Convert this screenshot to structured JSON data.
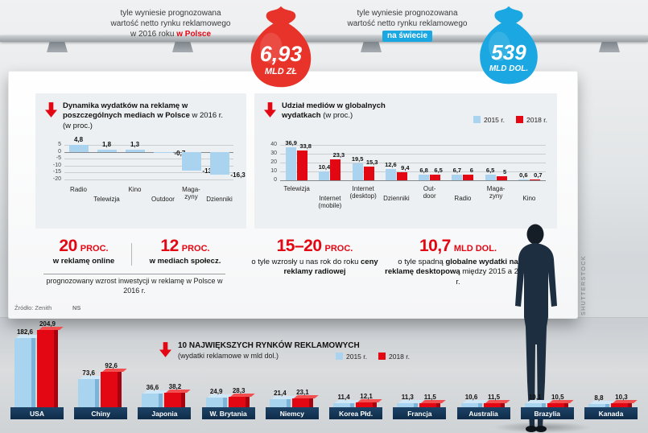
{
  "top": {
    "left_label": {
      "lines": [
        "tyle wyniesie prognozowana",
        "wartość netto rynku reklamowego",
        "w 2016 roku"
      ],
      "highlight": "w Polsce"
    },
    "left_bag": {
      "value": "6,93",
      "unit": "MLD ZŁ"
    },
    "right_label": {
      "lines": [
        "tyle wyniesie prognozowana",
        "wartość netto rynku reklamowego"
      ],
      "highlight": "na świecie"
    },
    "right_bag": {
      "value": "539",
      "unit": "MLD DOL."
    }
  },
  "legend": {
    "l2015": "2015 r.",
    "l2018": "2018 r."
  },
  "board": {
    "panel_pl": {
      "title_bold": "Dynamika wydatków na reklamę w poszczególnych mediach w Polsce",
      "title_rest": "w 2016 r. (w proc.)"
    },
    "panel_global": {
      "title_bold": "Udział mediów w globalnych wydatkach",
      "title_rest": "(w proc.)"
    },
    "stats": {
      "s1": {
        "value": "20",
        "unit": "PROC.",
        "bold": "w reklamę online"
      },
      "s2": {
        "value": "12",
        "unit": "PROC.",
        "bold": "w mediach społecz."
      },
      "s12_caption": "prognozowany wzrost inwestycji w reklamę w Polsce w 2016 r.",
      "s3": {
        "value": "15–20",
        "unit": "PROC.",
        "pre": "o tyle wzrosły u nas rok do roku",
        "bold": "ceny reklamy radiowej"
      },
      "s4": {
        "value": "10,7",
        "unit": "MLD DOL.",
        "pre": "o tyle spadną",
        "bold": "globalne wydatki na reklamę desktopową",
        "post": "między 2015 a 2018 r."
      }
    },
    "source": "Źródło: Zenith",
    "agency": "NS"
  },
  "watermark": "SHUTTERSTOCK",
  "bottom": {
    "title_bold": "10 NAJWIĘKSZYCH RYNKÓW REKLAMOWYCH",
    "title_rest": "(wydatki reklamowe w mld dol.)"
  },
  "colors": {
    "accent_red": "#e30613",
    "light_blue": "#a9d3ee",
    "navy_plate": "#14365a",
    "bag_red": "#e8332a",
    "bag_blue": "#1ba7e1"
  },
  "chart_data": [
    {
      "id": "pl_dynamics",
      "type": "bar",
      "title": "Dynamika wydatków na reklamę w poszczególnych mediach w Polsce w 2016 r. (w proc.)",
      "categories": [
        "Radio",
        "Telewizja",
        "Kino",
        "Outdoor",
        "Maga-\nzyny",
        "Dzienniki"
      ],
      "values": [
        4.8,
        1.8,
        1.3,
        -0.7,
        -13.8,
        -16.3
      ],
      "value_labels": [
        "4,8",
        "1,8",
        "1,3",
        "-0,7",
        "-13,8",
        "-16,3"
      ],
      "ylim": [
        -20,
        5
      ],
      "yticks": [
        5,
        0,
        -5,
        -10,
        -15,
        -20
      ],
      "bar_color": "#a9d3ee",
      "grid": true,
      "legend_position": "none"
    },
    {
      "id": "global_share",
      "type": "bar",
      "title": "Udział mediów w globalnych wydatkach (w proc.)",
      "categories": [
        "Telewizja",
        "Internet\n(mobile)",
        "Internet\n(desktop)",
        "Dzienniki",
        "Out-\ndoor",
        "Radio",
        "Maga-\nzyny",
        "Kino"
      ],
      "series": [
        {
          "name": "2015 r.",
          "color": "#a9d3ee",
          "values": [
            36.9,
            10.4,
            19.5,
            12.6,
            6.8,
            6.7,
            6.5,
            0.6
          ],
          "labels": [
            "36,9",
            "10,4",
            "19,5",
            "12,6",
            "6,8",
            "6,7",
            "6,5",
            "0,6"
          ]
        },
        {
          "name": "2018 r.",
          "color": "#e30613",
          "values": [
            33.8,
            23.3,
            15.3,
            9.4,
            6.5,
            6.0,
            5.0,
            0.7
          ],
          "labels": [
            "33,8",
            "23,3",
            "15,3",
            "9,4",
            "6,5",
            "6",
            "5",
            "0,7"
          ]
        }
      ],
      "ylim": [
        0,
        40
      ],
      "yticks": [
        40,
        30,
        20,
        10,
        0
      ],
      "grid": true,
      "legend_position": "top-right"
    },
    {
      "id": "top_markets",
      "type": "bar",
      "title": "10 największych rynków reklamowych (wydatki reklamowe w mld dol.)",
      "categories": [
        "USA",
        "Chiny",
        "Japonia",
        "W. Brytania",
        "Niemcy",
        "Korea Płd.",
        "Francja",
        "Australia",
        "Brazylia",
        "Kanada"
      ],
      "series": [
        {
          "name": "2015 r.",
          "color": "#a9d4ef",
          "values": [
            182.6,
            73.6,
            36.6,
            24.9,
            21.4,
            11.4,
            11.3,
            10.6,
            10.1,
            8.8
          ],
          "labels": [
            "182,6",
            "73,6",
            "36,6",
            "24,9",
            "21,4",
            "11,4",
            "11,3",
            "10,6",
            "10,1",
            "8,8"
          ]
        },
        {
          "name": "2018 r.",
          "color": "#e30613",
          "values": [
            204.9,
            92.6,
            38.2,
            28.3,
            23.1,
            12.1,
            11.5,
            11.5,
            10.5,
            10.3
          ],
          "labels": [
            "204,9",
            "92,6",
            "38,2",
            "28,3",
            "23,1",
            "12,1",
            "11,5",
            "11,5",
            "10,5",
            "10,3"
          ]
        }
      ],
      "ylim": [
        0,
        210
      ],
      "grid": false,
      "legend_position": "top"
    }
  ]
}
